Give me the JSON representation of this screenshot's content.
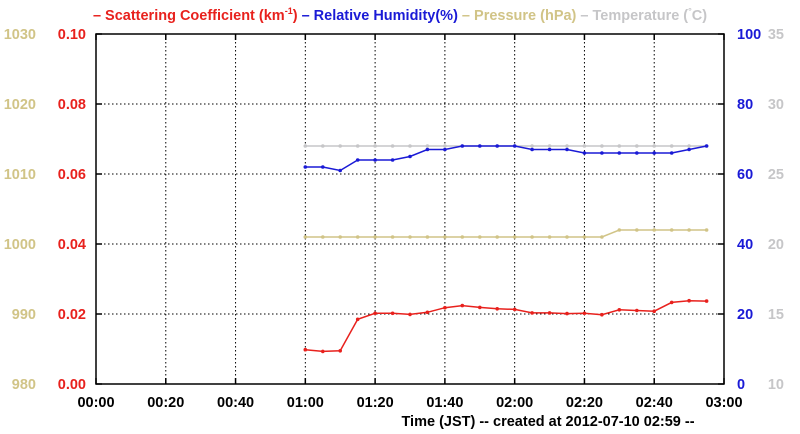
{
  "legend": [
    {
      "text": "– Scattering Coefficient (km",
      "sup": "-1",
      "close": ")",
      "color": "#e8211d"
    },
    {
      "text": "– Relative Humidity(%)",
      "color": "#1a1ad6"
    },
    {
      "text": "– Pressure (hPa)",
      "color": "#d1c487"
    },
    {
      "text": "– Temperature (",
      "sup": "°",
      "close": "C)",
      "color": "#c6c6c8"
    }
  ],
  "xlabel": "Time (JST)  -- created at 2012-07-10 02:59 --",
  "chart_data": {
    "type": "line",
    "x_ticks": [
      "00:00",
      "00:20",
      "00:40",
      "01:00",
      "01:20",
      "01:40",
      "02:00",
      "02:20",
      "02:40",
      "03:00"
    ],
    "axes": {
      "scattering": {
        "side": "left-inner",
        "ylim": [
          0.0,
          0.1
        ],
        "ticks": [
          "0.00",
          "0.02",
          "0.04",
          "0.06",
          "0.08",
          "0.10"
        ],
        "color": "#e8211d"
      },
      "pressure": {
        "side": "left-outer",
        "ylim": [
          980,
          1030
        ],
        "ticks": [
          "980",
          "990",
          "1000",
          "1010",
          "1020",
          "1030"
        ],
        "color": "#d1c487"
      },
      "humidity": {
        "side": "right-inner",
        "ylim": [
          0,
          100
        ],
        "ticks": [
          "0",
          "20",
          "40",
          "60",
          "80",
          "100"
        ],
        "color": "#1a1ad6"
      },
      "temperature": {
        "side": "right-outer",
        "ylim": [
          10,
          35
        ],
        "ticks": [
          "10",
          "15",
          "20",
          "25",
          "30",
          "35"
        ],
        "color": "#c6c6c8"
      }
    },
    "grid": true,
    "series": [
      {
        "name": "Scattering Coefficient (km-1)",
        "axis": "scattering",
        "color": "#e8211d",
        "x": [
          "01:00",
          "01:05",
          "01:10",
          "01:15",
          "01:20",
          "01:25",
          "01:30",
          "01:35",
          "01:40",
          "01:45",
          "01:50",
          "01:55",
          "02:00",
          "02:05",
          "02:10",
          "02:15",
          "02:20",
          "02:25",
          "02:30",
          "02:35",
          "02:40",
          "02:45",
          "02:50",
          "02:55"
        ],
        "values": [
          0.0098,
          0.0093,
          0.0095,
          0.0185,
          0.0202,
          0.0202,
          0.0199,
          0.0205,
          0.0218,
          0.0224,
          0.0219,
          0.0215,
          0.0213,
          0.0203,
          0.0203,
          0.0201,
          0.0202,
          0.0198,
          0.0212,
          0.021,
          0.0208,
          0.0233,
          0.0238,
          0.0237
        ]
      },
      {
        "name": "Relative Humidity(%)",
        "axis": "humidity",
        "color": "#1a1ad6",
        "x": [
          "01:00",
          "01:05",
          "01:10",
          "01:15",
          "01:20",
          "01:25",
          "01:30",
          "01:35",
          "01:40",
          "01:45",
          "01:50",
          "01:55",
          "02:00",
          "02:05",
          "02:10",
          "02:15",
          "02:20",
          "02:25",
          "02:30",
          "02:35",
          "02:40",
          "02:45",
          "02:50",
          "02:55"
        ],
        "values": [
          62,
          62,
          61,
          64,
          64,
          64,
          65,
          67,
          67,
          68,
          68,
          68,
          68,
          67,
          67,
          67,
          66,
          66,
          66,
          66,
          66,
          66,
          67,
          68
        ]
      },
      {
        "name": "Pressure (hPa)",
        "axis": "pressure",
        "color": "#d1c487",
        "x": [
          "01:00",
          "01:05",
          "01:10",
          "01:15",
          "01:20",
          "01:25",
          "01:30",
          "01:35",
          "01:40",
          "01:45",
          "01:50",
          "01:55",
          "02:00",
          "02:05",
          "02:10",
          "02:15",
          "02:20",
          "02:25",
          "02:30",
          "02:35",
          "02:40",
          "02:45",
          "02:50",
          "02:55"
        ],
        "values": [
          1001,
          1001,
          1001,
          1001,
          1001,
          1001,
          1001,
          1001,
          1001,
          1001,
          1001,
          1001,
          1001,
          1001,
          1001,
          1001,
          1001,
          1001,
          1002,
          1002,
          1002,
          1002,
          1002,
          1002
        ]
      },
      {
        "name": "Temperature (°C)",
        "axis": "temperature",
        "color": "#c6c6c8",
        "x": [
          "01:00",
          "01:05",
          "01:10",
          "01:15",
          "01:20",
          "01:25",
          "01:30",
          "01:35",
          "01:40",
          "01:45",
          "01:50",
          "01:55",
          "02:00",
          "02:05",
          "02:10",
          "02:15",
          "02:20",
          "02:25",
          "02:30",
          "02:35",
          "02:40",
          "02:45",
          "02:50",
          "02:55"
        ],
        "values": [
          27,
          27,
          27,
          27,
          27,
          27,
          27,
          27,
          27,
          27,
          27,
          27,
          27,
          27,
          27,
          27,
          27,
          27,
          27,
          27,
          27,
          27,
          27,
          27
        ]
      }
    ]
  }
}
